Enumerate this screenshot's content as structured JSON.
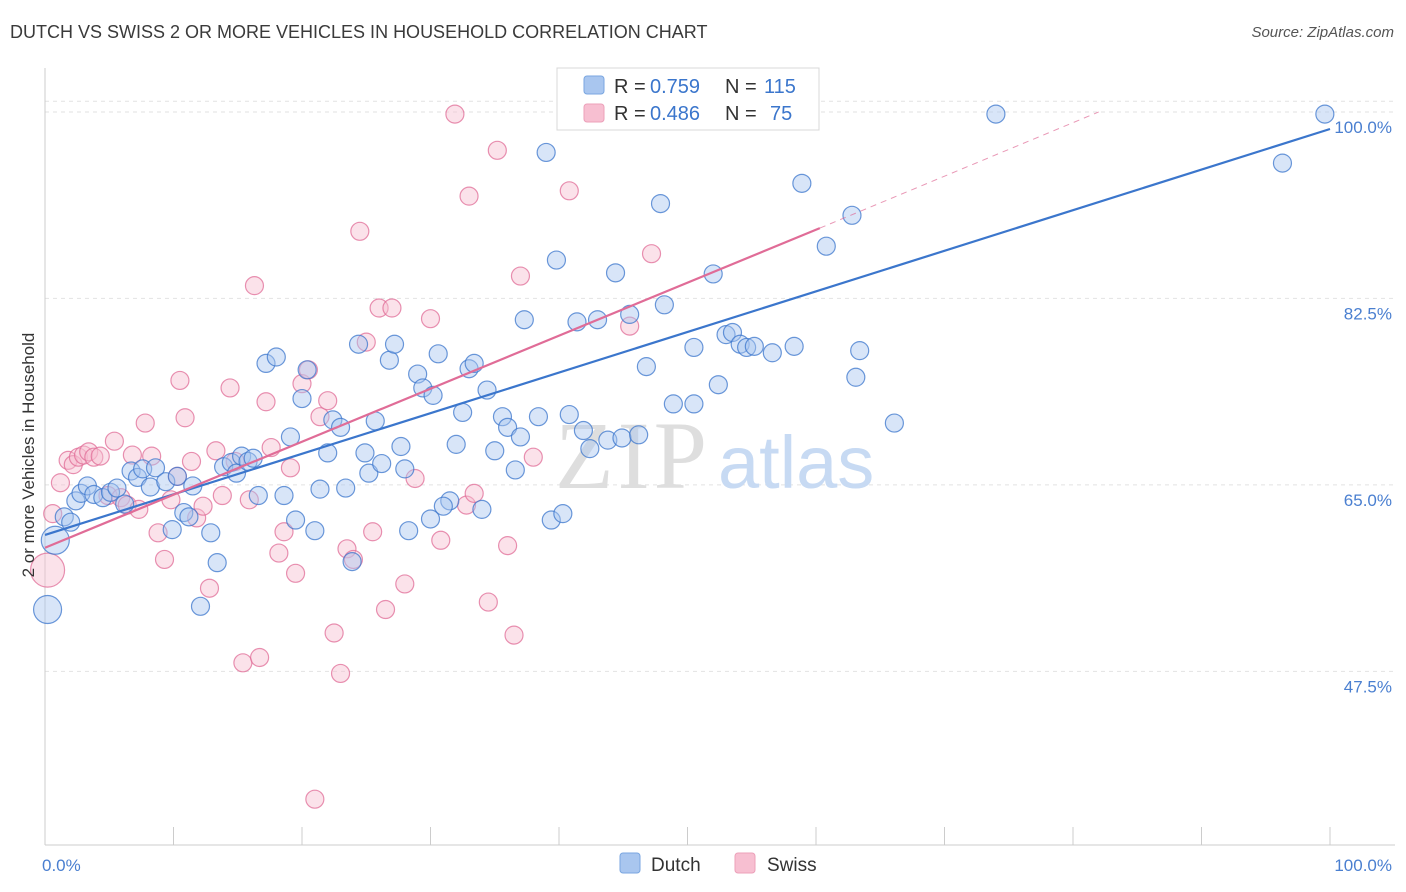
{
  "title": "DUTCH VS SWISS 2 OR MORE VEHICLES IN HOUSEHOLD CORRELATION CHART",
  "source": "Source: ZipAtlas.com",
  "watermark": {
    "zip": "ZIP",
    "atlas": "atlas"
  },
  "legend": {
    "rows": [
      {
        "r_label": "R =",
        "r_value": "0.759",
        "n_label": "N =",
        "n_value": "115",
        "color": "#8fb4e8"
      },
      {
        "r_label": "R =",
        "r_value": "0.486",
        "n_label": "N =",
        "n_value": "75",
        "color": "#f4a9c0"
      }
    ]
  },
  "bottom_legend": [
    {
      "label": "Dutch",
      "color": "#8fb4e8"
    },
    {
      "label": "Swiss",
      "color": "#f4a9c0"
    }
  ],
  "chart_data": {
    "type": "scatter",
    "title": "DUTCH VS SWISS 2 OR MORE VEHICLES IN HOUSEHOLD CORRELATION CHART",
    "xlabel": "",
    "ylabel": "2 or more Vehicles in Household",
    "x_tick_labels": [
      "0.0%",
      "100.0%"
    ],
    "y_tick_labels": [
      "100.0%",
      "82.5%",
      "65.0%",
      "47.5%"
    ],
    "y_ticks": [
      100.0,
      82.5,
      65.0,
      47.5
    ],
    "xlim": [
      0,
      100
    ],
    "ylim": [
      31.2,
      103.0
    ],
    "grid": true,
    "legend_position": "top-center",
    "series": [
      {
        "name": "Dutch",
        "color": "#3b76cc",
        "fill": "#a9c6ef",
        "trend": {
          "x": [
            0,
            100
          ],
          "y": [
            60.3,
            98.4
          ]
        },
        "points": [
          [
            0.2,
            53.3,
            14
          ],
          [
            0.8,
            59.8,
            14
          ],
          [
            1.5,
            62.0,
            9
          ],
          [
            2.0,
            61.5,
            9
          ],
          [
            2.4,
            63.5,
            9
          ],
          [
            2.8,
            64.2,
            9
          ],
          [
            3.3,
            64.9,
            9
          ],
          [
            3.8,
            64.1,
            9
          ],
          [
            4.5,
            63.8,
            9
          ],
          [
            5.1,
            64.3,
            9
          ],
          [
            5.6,
            64.7,
            9
          ],
          [
            6.2,
            63.2,
            9
          ],
          [
            6.7,
            66.3,
            9
          ],
          [
            7.2,
            65.7,
            9
          ],
          [
            7.6,
            66.5,
            9
          ],
          [
            8.2,
            64.8,
            9
          ],
          [
            8.6,
            66.6,
            9
          ],
          [
            9.4,
            65.3,
            9
          ],
          [
            9.9,
            60.8,
            9
          ],
          [
            10.3,
            65.8,
            9
          ],
          [
            10.8,
            62.4,
            9
          ],
          [
            11.2,
            62.0,
            9
          ],
          [
            11.5,
            64.9,
            9
          ],
          [
            12.1,
            53.6,
            9
          ],
          [
            12.9,
            60.5,
            9
          ],
          [
            13.4,
            57.7,
            9
          ],
          [
            13.9,
            66.7,
            9
          ],
          [
            14.5,
            67.1,
            9
          ],
          [
            14.9,
            66.1,
            9
          ],
          [
            15.3,
            67.7,
            9
          ],
          [
            15.8,
            67.2,
            9
          ],
          [
            16.2,
            67.5,
            9
          ],
          [
            16.6,
            64.0,
            9
          ],
          [
            17.2,
            76.4,
            9
          ],
          [
            18.0,
            77.0,
            9
          ],
          [
            18.6,
            64.0,
            9
          ],
          [
            19.1,
            69.5,
            9
          ],
          [
            19.5,
            61.7,
            9
          ],
          [
            20.0,
            73.1,
            9
          ],
          [
            20.4,
            75.8,
            9
          ],
          [
            21.0,
            60.7,
            9
          ],
          [
            21.4,
            64.6,
            9
          ],
          [
            22.0,
            68.0,
            9
          ],
          [
            22.4,
            71.1,
            9
          ],
          [
            23.0,
            70.4,
            9
          ],
          [
            23.4,
            64.7,
            9
          ],
          [
            23.9,
            57.8,
            9
          ],
          [
            24.4,
            78.2,
            9
          ],
          [
            24.9,
            68.0,
            9
          ],
          [
            25.2,
            66.1,
            9
          ],
          [
            25.7,
            71.0,
            9
          ],
          [
            26.2,
            67.0,
            9
          ],
          [
            26.8,
            76.7,
            9
          ],
          [
            27.2,
            78.2,
            9
          ],
          [
            27.7,
            68.6,
            9
          ],
          [
            28.3,
            60.7,
            9
          ],
          [
            29.0,
            75.4,
            9
          ],
          [
            29.4,
            74.1,
            9
          ],
          [
            30.2,
            73.4,
            9
          ],
          [
            30.6,
            77.3,
            9
          ],
          [
            30.0,
            61.8,
            9
          ],
          [
            31.5,
            63.5,
            9
          ],
          [
            32.0,
            68.8,
            9
          ],
          [
            32.5,
            71.8,
            9
          ],
          [
            33.0,
            75.9,
            9
          ],
          [
            33.4,
            76.4,
            9
          ],
          [
            34.0,
            62.7,
            9
          ],
          [
            34.4,
            73.9,
            9
          ],
          [
            35.0,
            68.2,
            9
          ],
          [
            35.6,
            71.4,
            9
          ],
          [
            36.0,
            70.4,
            9
          ],
          [
            36.6,
            66.4,
            9
          ],
          [
            37.3,
            80.5,
            9
          ],
          [
            38.4,
            71.4,
            9
          ],
          [
            39.0,
            96.2,
            9
          ],
          [
            39.4,
            61.7,
            9
          ],
          [
            39.8,
            86.1,
            9
          ],
          [
            40.3,
            62.3,
            9
          ],
          [
            40.8,
            71.6,
            9
          ],
          [
            41.4,
            80.3,
            9
          ],
          [
            41.9,
            70.1,
            9
          ],
          [
            42.4,
            68.4,
            9
          ],
          [
            43.0,
            80.5,
            9
          ],
          [
            43.8,
            69.2,
            9
          ],
          [
            44.4,
            84.9,
            9
          ],
          [
            44.9,
            69.4,
            9
          ],
          [
            45.5,
            81.0,
            9
          ],
          [
            46.2,
            69.7,
            9
          ],
          [
            46.8,
            76.1,
            9
          ],
          [
            47.9,
            91.4,
            9
          ],
          [
            48.2,
            81.9,
            9
          ],
          [
            48.9,
            72.6,
            9
          ],
          [
            50.5,
            72.6,
            9
          ],
          [
            50.5,
            77.9,
            9
          ],
          [
            52.0,
            84.8,
            9
          ],
          [
            52.4,
            74.4,
            9
          ],
          [
            53.0,
            79.1,
            9
          ],
          [
            53.5,
            79.3,
            9
          ],
          [
            54.1,
            78.2,
            9
          ],
          [
            54.6,
            77.9,
            9
          ],
          [
            55.2,
            78.0,
            9
          ],
          [
            56.6,
            77.4,
            9
          ],
          [
            58.3,
            78.0,
            9
          ],
          [
            58.9,
            93.3,
            9
          ],
          [
            60.8,
            87.4,
            9
          ],
          [
            62.8,
            90.3,
            9
          ],
          [
            63.4,
            77.6,
            9
          ],
          [
            63.1,
            75.1,
            9
          ],
          [
            66.1,
            70.8,
            9
          ],
          [
            74.0,
            99.8,
            9
          ],
          [
            96.3,
            95.2,
            9
          ],
          [
            99.6,
            99.8,
            9
          ],
          [
            37.0,
            69.5,
            9
          ],
          [
            31.0,
            63.0,
            9
          ],
          [
            28.0,
            66.5,
            9
          ]
        ]
      },
      {
        "name": "Swiss",
        "color": "#e06c97",
        "fill": "#f7bfd1",
        "trend": {
          "x": [
            0,
            60.3
          ],
          "y": [
            59.1,
            89.1
          ]
        },
        "trend_dashed": {
          "x": [
            60.3,
            82.0
          ],
          "y": [
            89.1,
            100.0
          ]
        },
        "points": [
          [
            0.2,
            57.0,
            17
          ],
          [
            0.6,
            62.3,
            9
          ],
          [
            1.2,
            65.2,
            9
          ],
          [
            1.8,
            67.3,
            9
          ],
          [
            2.2,
            66.9,
            9
          ],
          [
            2.6,
            67.6,
            9
          ],
          [
            3.0,
            67.8,
            9
          ],
          [
            3.4,
            68.1,
            9
          ],
          [
            3.8,
            67.6,
            9
          ],
          [
            4.3,
            67.7,
            9
          ],
          [
            4.9,
            64.0,
            9
          ],
          [
            5.4,
            69.1,
            9
          ],
          [
            5.9,
            63.8,
            9
          ],
          [
            6.4,
            63.1,
            9
          ],
          [
            6.8,
            67.8,
            9
          ],
          [
            7.3,
            62.7,
            9
          ],
          [
            7.8,
            70.8,
            9
          ],
          [
            8.3,
            67.7,
            9
          ],
          [
            8.8,
            60.5,
            9
          ],
          [
            9.3,
            58.0,
            9
          ],
          [
            9.8,
            63.6,
            9
          ],
          [
            10.3,
            65.8,
            9
          ],
          [
            10.5,
            74.8,
            9
          ],
          [
            10.9,
            71.3,
            9
          ],
          [
            11.4,
            67.2,
            9
          ],
          [
            11.8,
            61.9,
            9
          ],
          [
            12.3,
            63.0,
            9
          ],
          [
            12.8,
            55.3,
            9
          ],
          [
            13.3,
            68.2,
            9
          ],
          [
            13.8,
            64.0,
            9
          ],
          [
            14.4,
            74.1,
            9
          ],
          [
            14.8,
            67.2,
            9
          ],
          [
            15.4,
            48.3,
            9
          ],
          [
            15.9,
            63.6,
            9
          ],
          [
            16.3,
            83.7,
            9
          ],
          [
            16.7,
            48.8,
            9
          ],
          [
            17.2,
            72.8,
            9
          ],
          [
            17.6,
            68.5,
            9
          ],
          [
            18.2,
            58.6,
            9
          ],
          [
            18.6,
            60.6,
            9
          ],
          [
            19.1,
            66.6,
            9
          ],
          [
            19.5,
            56.7,
            9
          ],
          [
            20.0,
            74.5,
            9
          ],
          [
            20.5,
            75.8,
            9
          ],
          [
            21.0,
            35.5,
            9
          ],
          [
            21.4,
            71.4,
            9
          ],
          [
            22.0,
            72.9,
            9
          ],
          [
            22.5,
            51.1,
            9
          ],
          [
            23.0,
            47.3,
            9
          ],
          [
            23.5,
            59.0,
            9
          ],
          [
            24.0,
            58.0,
            9
          ],
          [
            24.5,
            88.8,
            9
          ],
          [
            25.0,
            78.4,
            9
          ],
          [
            25.5,
            60.6,
            9
          ],
          [
            26.0,
            81.6,
            9
          ],
          [
            26.5,
            53.3,
            9
          ],
          [
            27.0,
            81.6,
            9
          ],
          [
            28.0,
            55.7,
            9
          ],
          [
            28.8,
            65.6,
            9
          ],
          [
            30.0,
            80.6,
            9
          ],
          [
            30.8,
            59.8,
            9
          ],
          [
            31.9,
            99.8,
            9
          ],
          [
            32.8,
            63.1,
            9
          ],
          [
            33.4,
            64.2,
            9
          ],
          [
            34.5,
            54.0,
            9
          ],
          [
            35.2,
            96.4,
            9
          ],
          [
            36.0,
            59.3,
            9
          ],
          [
            36.5,
            50.9,
            9
          ],
          [
            37.0,
            84.6,
            9
          ],
          [
            38.0,
            67.6,
            9
          ],
          [
            40.8,
            92.6,
            9
          ],
          [
            45.5,
            79.9,
            9
          ],
          [
            47.2,
            86.7,
            9
          ],
          [
            52.3,
            99.8,
            9
          ],
          [
            33.0,
            92.1,
            9
          ]
        ]
      }
    ]
  }
}
